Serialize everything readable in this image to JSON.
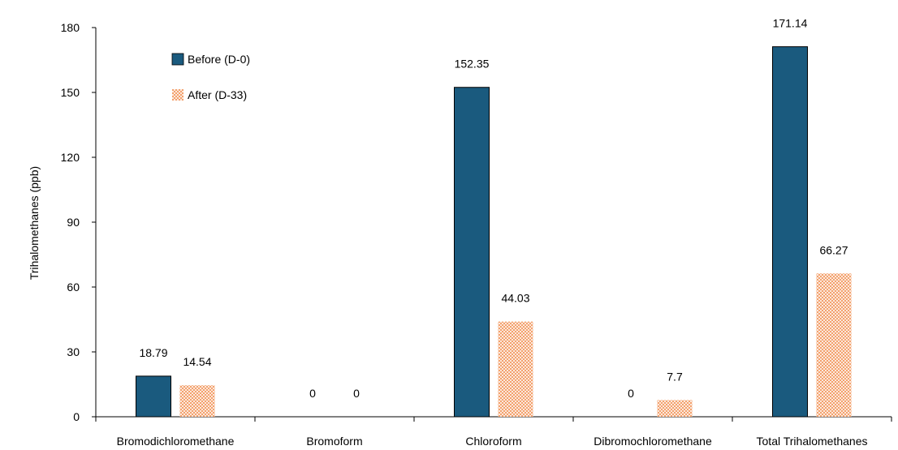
{
  "chart_data": {
    "type": "bar",
    "title": "",
    "xlabel": "",
    "ylabel": "Trihalomethanes (ppb)",
    "ylim": [
      0,
      180
    ],
    "yticks": [
      0,
      30,
      60,
      90,
      120,
      150,
      180
    ],
    "grid": false,
    "legend_position": "top-left",
    "categories": [
      "Bromodichloromethane",
      "Bromoform",
      "Chloroform",
      "Dibromochloromethane",
      "Total Trihalomethanes"
    ],
    "series": [
      {
        "name": "Before (D-0)",
        "values": [
          18.79,
          0,
          152.35,
          0,
          171.14
        ],
        "labels": [
          "18.79",
          "0",
          "152.35",
          "0",
          "171.14"
        ],
        "color": "#1a5a7e",
        "fill": "solid"
      },
      {
        "name": "After (D-33)",
        "values": [
          14.54,
          0,
          44.03,
          7.7,
          66.27
        ],
        "labels": [
          "14.54",
          "0",
          "44.03",
          "7.7",
          "66.27"
        ],
        "color": "#e8773a",
        "fill": "dotted"
      }
    ]
  }
}
